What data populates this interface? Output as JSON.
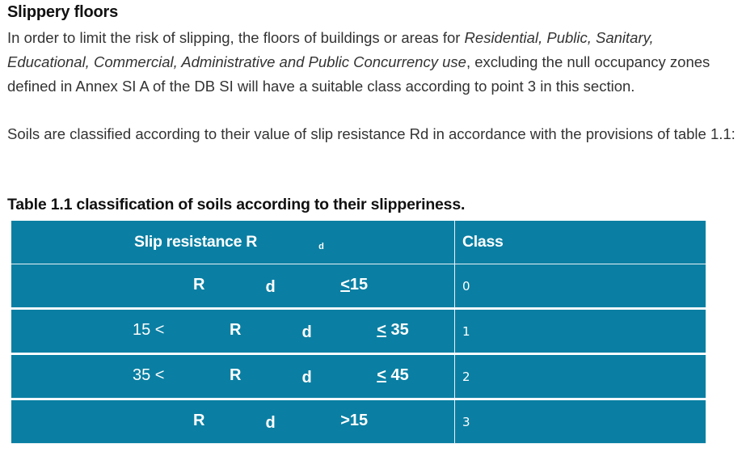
{
  "heading": "Slippery floors",
  "paragraph1": {
    "t1": "In order to limit the risk of slipping, the floors of buildings or areas for ",
    "t2": "Residential, Public, Sanitary, Educational, Commercial, Administrative and Public Concurrency use",
    "t3": ", excluding the null occupancy zones defined in Annex SI A of the DB SI will have a suitable class according to point 3 in this section."
  },
  "paragraph2": "Soils are classified according to their value of slip resistance Rd in accordance with the provisions of table 1.1:",
  "table_caption": "Table 1.1 classification of soils according to their slipperiness.",
  "table": {
    "headers": {
      "col1": "Slip resistance R",
      "col1_sub": "d",
      "col2": "Class"
    },
    "rows": [
      {
        "pre": "",
        "r": "R",
        "sub": "d",
        "post": " <15",
        "class": "0"
      },
      {
        "pre": "15 < ",
        "r": "R",
        "sub": "d",
        "post": " <  35",
        "class": "1"
      },
      {
        "pre": "35 < ",
        "r": "R",
        "sub": "d",
        "post": "  < 45",
        "class": "2"
      },
      {
        "pre": "",
        "r": "R",
        "sub": "d",
        "post": " >15",
        "class": "3"
      }
    ]
  },
  "colors": {
    "table_bg": "#0a7fa3",
    "table_text": "#ffffff",
    "body_text": "#333333"
  }
}
